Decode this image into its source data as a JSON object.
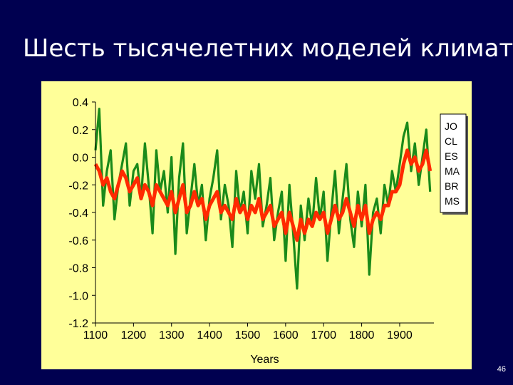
{
  "slide": {
    "title": "Шесть тысячелетних моделей климата",
    "page_number": "46"
  },
  "colors": {
    "background": "#000050",
    "panel": "#ffff99",
    "series_green": "#1a8a1a",
    "series_red": "#ff2a00",
    "title_text": "#ffffff"
  },
  "chart_data": {
    "type": "line",
    "title": "",
    "xlabel": "Years",
    "ylabel": "",
    "xlim": [
      1100,
      1990
    ],
    "ylim": [
      -1.2,
      0.4
    ],
    "x_ticks": [
      1100,
      1200,
      1300,
      1400,
      1500,
      1600,
      1700,
      1800,
      1900
    ],
    "y_ticks": [
      0.4,
      0.2,
      0.0,
      -0.2,
      -0.4,
      -0.6,
      -0.8,
      -1.0,
      -1.2
    ],
    "y_tick_labels": [
      "0.4",
      "0.2",
      "0.0",
      "-0.2",
      "-0.4",
      "-0.6",
      "-0.8",
      "-1.0",
      "-1.2"
    ],
    "grid": false,
    "legend": {
      "placement": "right",
      "entries": [
        "JO",
        "CL",
        "ES",
        "MA",
        "BR",
        "MS"
      ]
    },
    "series": [
      {
        "style": "green",
        "x": [
          1100,
          1110,
          1120,
          1130,
          1140,
          1150,
          1160,
          1170,
          1180,
          1190,
          1200,
          1210,
          1220,
          1230,
          1240,
          1250,
          1260,
          1270,
          1280,
          1290,
          1300,
          1310,
          1320,
          1330,
          1340,
          1350,
          1360,
          1370,
          1380,
          1390,
          1400,
          1410,
          1420,
          1430,
          1440,
          1450,
          1460,
          1470,
          1480,
          1490,
          1500,
          1510,
          1520,
          1530,
          1540,
          1550,
          1560,
          1570,
          1580,
          1590,
          1600,
          1610,
          1620,
          1630,
          1640,
          1650,
          1660,
          1670,
          1680,
          1690,
          1700,
          1710,
          1720,
          1730,
          1740,
          1750,
          1760,
          1770,
          1780,
          1790,
          1800,
          1810,
          1820,
          1830,
          1840,
          1850,
          1860,
          1870,
          1880,
          1890,
          1900,
          1910,
          1920,
          1930,
          1940,
          1950,
          1960,
          1970,
          1980
        ],
        "y": [
          0.05,
          0.35,
          -0.35,
          -0.1,
          0.05,
          -0.45,
          -0.2,
          -0.05,
          0.1,
          -0.35,
          -0.1,
          -0.05,
          -0.3,
          0.1,
          -0.2,
          -0.55,
          0.05,
          -0.25,
          -0.1,
          -0.4,
          0.0,
          -0.7,
          -0.15,
          0.1,
          -0.55,
          -0.3,
          -0.05,
          -0.35,
          -0.2,
          -0.6,
          -0.3,
          -0.15,
          0.05,
          -0.45,
          -0.2,
          -0.35,
          -0.65,
          -0.1,
          -0.4,
          -0.25,
          -0.55,
          -0.1,
          -0.3,
          -0.05,
          -0.5,
          -0.35,
          -0.15,
          -0.6,
          -0.4,
          -0.25,
          -0.75,
          -0.2,
          -0.55,
          -0.95,
          -0.35,
          -0.6,
          -0.3,
          -0.5,
          -0.15,
          -0.45,
          -0.25,
          -0.75,
          -0.4,
          -0.1,
          -0.55,
          -0.3,
          -0.05,
          -0.45,
          -0.65,
          -0.25,
          -0.5,
          -0.2,
          -0.85,
          -0.4,
          -0.3,
          -0.55,
          -0.2,
          -0.35,
          -0.1,
          -0.25,
          -0.05,
          0.15,
          0.25,
          -0.1,
          0.1,
          -0.2,
          0.0,
          0.2,
          -0.25
        ]
      },
      {
        "style": "red",
        "x": [
          1100,
          1110,
          1120,
          1130,
          1140,
          1150,
          1160,
          1170,
          1180,
          1190,
          1200,
          1210,
          1220,
          1230,
          1240,
          1250,
          1260,
          1270,
          1280,
          1290,
          1300,
          1310,
          1320,
          1330,
          1340,
          1350,
          1360,
          1370,
          1380,
          1390,
          1400,
          1410,
          1420,
          1430,
          1440,
          1450,
          1460,
          1470,
          1480,
          1490,
          1500,
          1510,
          1520,
          1530,
          1540,
          1550,
          1560,
          1570,
          1580,
          1590,
          1600,
          1610,
          1620,
          1630,
          1640,
          1650,
          1660,
          1670,
          1680,
          1690,
          1700,
          1710,
          1720,
          1730,
          1740,
          1750,
          1760,
          1770,
          1780,
          1790,
          1800,
          1810,
          1820,
          1830,
          1840,
          1850,
          1860,
          1870,
          1880,
          1890,
          1900,
          1910,
          1920,
          1930,
          1940,
          1950,
          1960,
          1970,
          1980
        ],
        "y": [
          -0.05,
          -0.1,
          -0.2,
          -0.15,
          -0.25,
          -0.3,
          -0.2,
          -0.1,
          -0.15,
          -0.25,
          -0.2,
          -0.15,
          -0.3,
          -0.2,
          -0.25,
          -0.35,
          -0.2,
          -0.25,
          -0.3,
          -0.35,
          -0.25,
          -0.4,
          -0.3,
          -0.2,
          -0.4,
          -0.35,
          -0.25,
          -0.35,
          -0.3,
          -0.45,
          -0.35,
          -0.3,
          -0.25,
          -0.4,
          -0.35,
          -0.4,
          -0.45,
          -0.3,
          -0.4,
          -0.35,
          -0.45,
          -0.35,
          -0.4,
          -0.3,
          -0.45,
          -0.4,
          -0.35,
          -0.5,
          -0.45,
          -0.4,
          -0.55,
          -0.4,
          -0.5,
          -0.6,
          -0.45,
          -0.55,
          -0.45,
          -0.5,
          -0.4,
          -0.45,
          -0.4,
          -0.55,
          -0.45,
          -0.35,
          -0.45,
          -0.4,
          -0.3,
          -0.4,
          -0.5,
          -0.35,
          -0.45,
          -0.35,
          -0.55,
          -0.45,
          -0.4,
          -0.45,
          -0.35,
          -0.35,
          -0.25,
          -0.25,
          -0.2,
          -0.05,
          0.05,
          -0.05,
          0.0,
          -0.1,
          -0.05,
          0.05,
          -0.1
        ]
      }
    ]
  }
}
